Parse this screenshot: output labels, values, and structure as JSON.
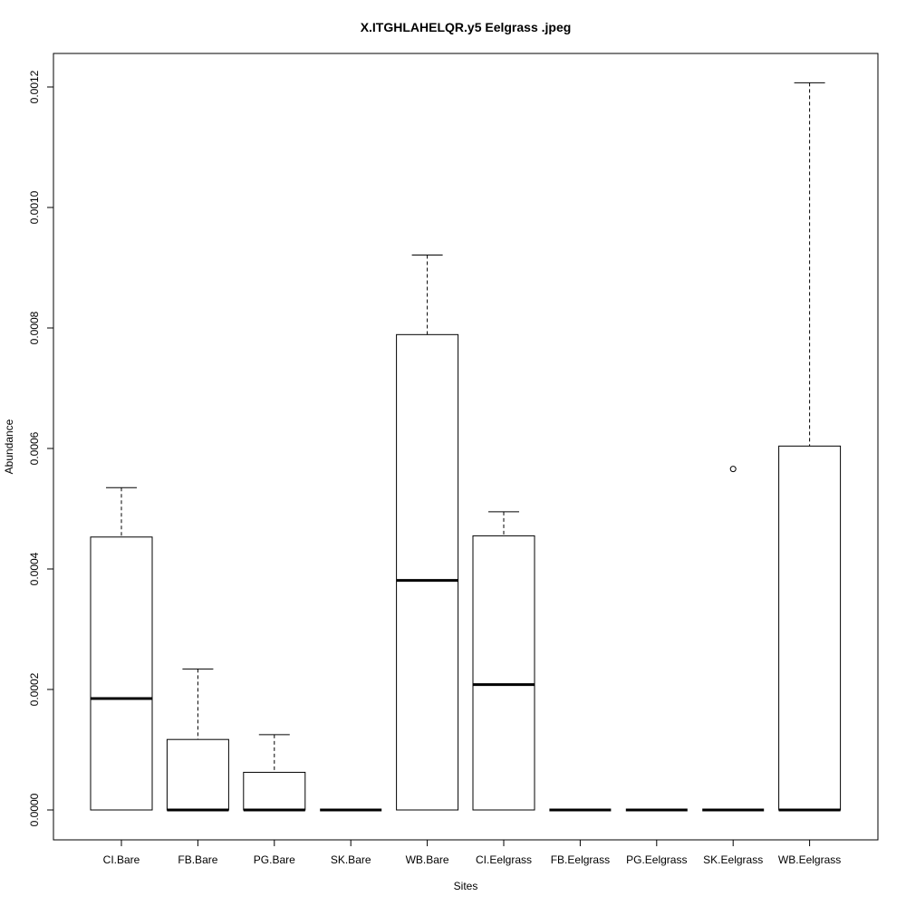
{
  "chart_data": {
    "type": "boxplot",
    "title": "X.ITGHLAHELQR.y5 Eelgrass .jpeg",
    "xlabel": "Sites",
    "ylabel": "Abundance",
    "ylim": [
      -5e-05,
      0.00126
    ],
    "y_ticks": [
      "0.0000",
      "0.0002",
      "0.0004",
      "0.0006",
      "0.0008",
      "0.0010",
      "0.0012"
    ],
    "categories": [
      "CI.Bare",
      "FB.Bare",
      "PG.Bare",
      "SK.Bare",
      "WB.Bare",
      "CI.Eelgrass",
      "FB.Eelgrass",
      "PG.Eelgrass",
      "SK.Eelgrass",
      "WB.Eelgrass"
    ],
    "boxes": [
      {
        "category": "CI.Bare",
        "min": 0.0,
        "q1": 0.0,
        "median": 0.000185,
        "q3": 0.000453,
        "max": 0.000535,
        "outliers": []
      },
      {
        "category": "FB.Bare",
        "min": 0.0,
        "q1": 0.0,
        "median": 0.0,
        "q3": 0.000117,
        "max": 0.000234,
        "outliers": []
      },
      {
        "category": "PG.Bare",
        "min": 0.0,
        "q1": 0.0,
        "median": 0.0,
        "q3": 6.25e-05,
        "max": 0.000125,
        "outliers": []
      },
      {
        "category": "SK.Bare",
        "min": 0.0,
        "q1": 0.0,
        "median": 0.0,
        "q3": 0.0,
        "max": 0.0,
        "outliers": []
      },
      {
        "category": "WB.Bare",
        "min": 0.0,
        "q1": 0.0,
        "median": 0.000381,
        "q3": 0.000789,
        "max": 0.000921,
        "outliers": []
      },
      {
        "category": "CI.Eelgrass",
        "min": 0.0,
        "q1": 0.0,
        "median": 0.000208,
        "q3": 0.000455,
        "max": 0.000495,
        "outliers": []
      },
      {
        "category": "FB.Eelgrass",
        "min": 0.0,
        "q1": 0.0,
        "median": 0.0,
        "q3": 0.0,
        "max": 0.0,
        "outliers": []
      },
      {
        "category": "PG.Eelgrass",
        "min": 0.0,
        "q1": 0.0,
        "median": 0.0,
        "q3": 0.0,
        "max": 0.0,
        "outliers": []
      },
      {
        "category": "SK.Eelgrass",
        "min": 0.0,
        "q1": 0.0,
        "median": 0.0,
        "q3": 0.0,
        "max": 0.0,
        "outliers": [
          0.000566
        ]
      },
      {
        "category": "WB.Eelgrass",
        "min": 0.0,
        "q1": 0.0,
        "median": 0.0,
        "q3": 0.000604,
        "max": 0.001207,
        "outliers": []
      }
    ],
    "grid": false,
    "legend": "none"
  }
}
